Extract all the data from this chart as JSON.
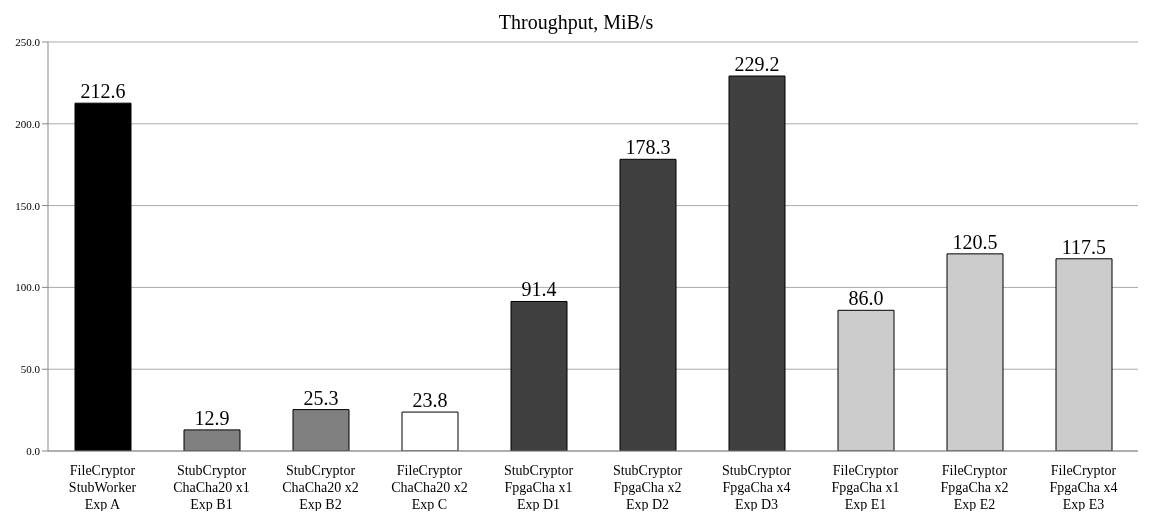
{
  "chart_data": {
    "type": "bar",
    "title": "Throughput, MiB/s",
    "categories": [
      "FileCryptor\nStubWorker\nExp A",
      "StubCryptor\nChaCha20 x1\nExp B1",
      "StubCryptor\nChaCha20 x2\nExp B2",
      "FileCryptor\nChaCha20 x2\nExp C",
      "StubCryptor\nFpgaCha x1\nExp D1",
      "StubCryptor\nFpgaCha x2\nExp D2",
      "StubCryptor\nFpgaCha x4\nExp D3",
      "FileCryptor\nFpgaCha x1\nExp E1",
      "FileCryptor\nFpgaCha x2\nExp E2",
      "FileCryptor\nFpgaCha x4\nExp E3"
    ],
    "values": [
      212.6,
      12.9,
      25.3,
      23.8,
      91.4,
      178.3,
      229.2,
      86.0,
      120.5,
      117.5
    ],
    "value_labels": [
      "212.6",
      "12.9",
      "25.3",
      "23.8",
      "91.4",
      "178.3",
      "229.2",
      "86.0",
      "120.5",
      "117.5"
    ],
    "colors": [
      "#000000",
      "#808080",
      "#808080",
      "#ffffff",
      "#404040",
      "#404040",
      "#404040",
      "#cccccc",
      "#cccccc",
      "#cccccc"
    ],
    "ylim": [
      0,
      250
    ],
    "yticks": [
      {
        "value": 0,
        "label": "0.0"
      },
      {
        "value": 50,
        "label": "50.0"
      },
      {
        "value": 100,
        "label": "100.0"
      },
      {
        "value": 150,
        "label": "150.0"
      },
      {
        "value": 200,
        "label": "200.0"
      },
      {
        "value": 250,
        "label": "250.0"
      }
    ],
    "grid": "y"
  }
}
